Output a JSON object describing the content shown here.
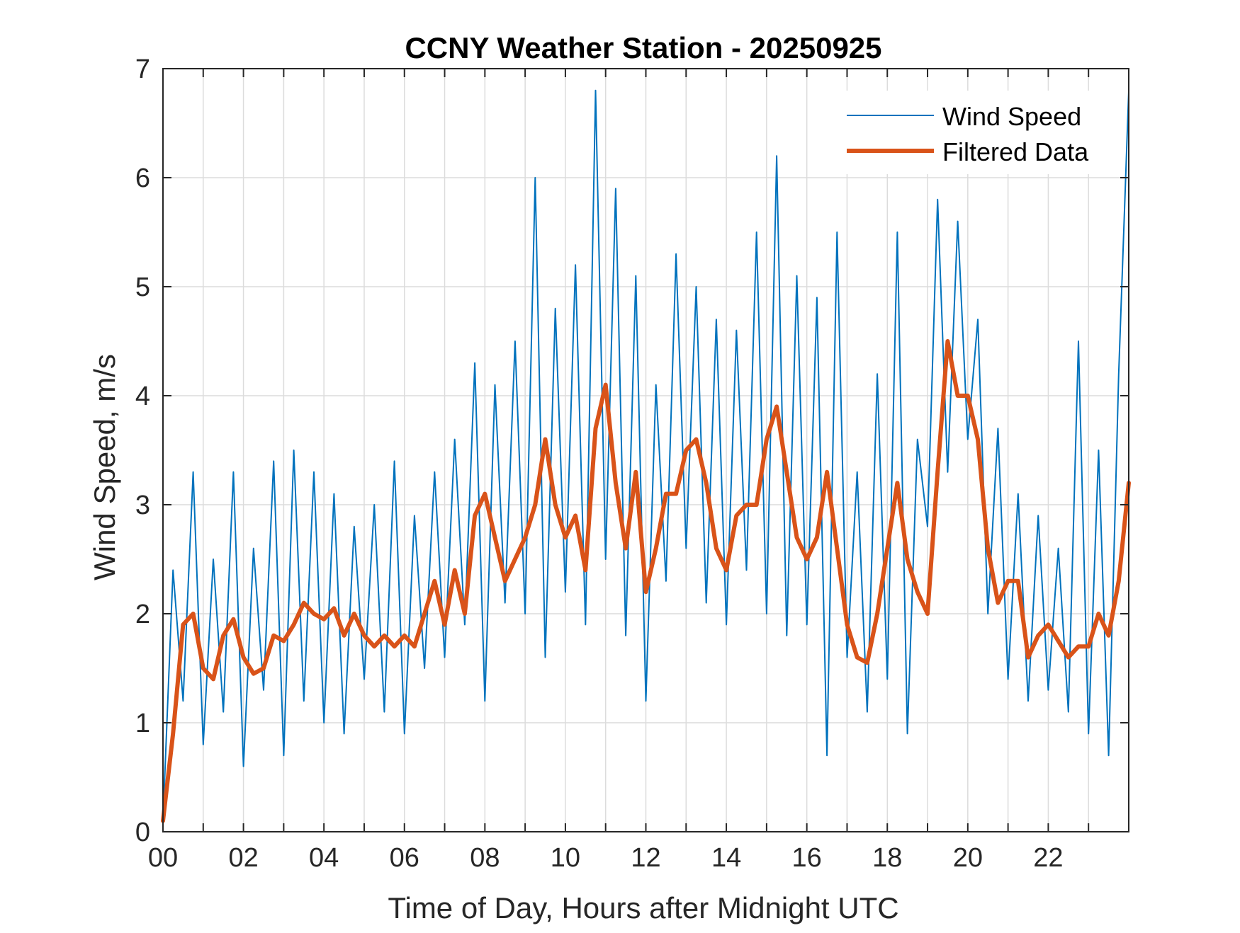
{
  "chart_data": {
    "type": "line",
    "title": "CCNY Weather Station - 20250925",
    "xlabel": "Time of Day, Hours after Midnight UTC",
    "ylabel": "Wind Speed, m/s",
    "xlim": [
      0,
      24
    ],
    "ylim": [
      0,
      7
    ],
    "x_ticks": [
      0,
      2,
      4,
      6,
      8,
      10,
      12,
      14,
      16,
      18,
      20,
      22
    ],
    "x_tick_labels": [
      "00",
      "02",
      "04",
      "06",
      "08",
      "10",
      "12",
      "14",
      "16",
      "18",
      "20",
      "22"
    ],
    "y_ticks": [
      0,
      1,
      2,
      3,
      4,
      5,
      6,
      7
    ],
    "y_tick_labels": [
      "0",
      "1",
      "2",
      "3",
      "4",
      "5",
      "6",
      "7"
    ],
    "grid": true,
    "legend": {
      "position": "top-right"
    },
    "series": [
      {
        "name": "Wind Speed",
        "color": "#0072BD",
        "style": "thin",
        "x": [
          0.0,
          0.25,
          0.5,
          0.75,
          1.0,
          1.25,
          1.5,
          1.75,
          2.0,
          2.25,
          2.5,
          2.75,
          3.0,
          3.25,
          3.5,
          3.75,
          4.0,
          4.25,
          4.5,
          4.75,
          5.0,
          5.25,
          5.5,
          5.75,
          6.0,
          6.25,
          6.5,
          6.75,
          7.0,
          7.25,
          7.5,
          7.75,
          8.0,
          8.25,
          8.5,
          8.75,
          9.0,
          9.25,
          9.5,
          9.75,
          10.0,
          10.25,
          10.5,
          10.75,
          11.0,
          11.25,
          11.5,
          11.75,
          12.0,
          12.25,
          12.5,
          12.75,
          13.0,
          13.25,
          13.5,
          13.75,
          14.0,
          14.25,
          14.5,
          14.75,
          15.0,
          15.25,
          15.5,
          15.75,
          16.0,
          16.25,
          16.5,
          16.75,
          17.0,
          17.25,
          17.5,
          17.75,
          18.0,
          18.25,
          18.5,
          18.75,
          19.0,
          19.25,
          19.5,
          19.75,
          20.0,
          20.25,
          20.5,
          20.75,
          21.0,
          21.25,
          21.5,
          21.75,
          22.0,
          22.25,
          22.5,
          22.75,
          23.0,
          23.25,
          23.5,
          23.75,
          24.0
        ],
        "values": [
          0.1,
          2.4,
          1.2,
          3.3,
          0.8,
          2.5,
          1.1,
          3.3,
          0.6,
          2.6,
          1.3,
          3.4,
          0.7,
          3.5,
          1.2,
          3.3,
          1.0,
          3.1,
          0.9,
          2.8,
          1.4,
          3.0,
          1.1,
          3.4,
          0.9,
          2.9,
          1.5,
          3.3,
          1.6,
          3.6,
          1.9,
          4.3,
          1.2,
          4.1,
          2.1,
          4.5,
          2.0,
          6.0,
          1.6,
          4.8,
          2.2,
          5.2,
          1.9,
          6.8,
          2.5,
          5.9,
          1.8,
          5.1,
          1.2,
          4.1,
          2.3,
          5.3,
          2.6,
          5.0,
          2.1,
          4.7,
          1.9,
          4.6,
          2.4,
          5.5,
          2.0,
          6.2,
          1.8,
          5.1,
          1.9,
          4.9,
          0.7,
          5.5,
          1.6,
          3.3,
          1.1,
          4.2,
          1.4,
          5.5,
          0.9,
          3.6,
          2.8,
          5.8,
          3.3,
          5.6,
          3.6,
          4.7,
          2.0,
          3.7,
          1.4,
          3.1,
          1.2,
          2.9,
          1.3,
          2.6,
          1.1,
          4.5,
          0.9,
          3.5,
          0.7,
          4.2,
          6.8
        ]
      },
      {
        "name": "Filtered Data",
        "color": "#D95319",
        "style": "thick",
        "x": [
          0.0,
          0.25,
          0.5,
          0.75,
          1.0,
          1.25,
          1.5,
          1.75,
          2.0,
          2.25,
          2.5,
          2.75,
          3.0,
          3.25,
          3.5,
          3.75,
          4.0,
          4.25,
          4.5,
          4.75,
          5.0,
          5.25,
          5.5,
          5.75,
          6.0,
          6.25,
          6.5,
          6.75,
          7.0,
          7.25,
          7.5,
          7.75,
          8.0,
          8.25,
          8.5,
          8.75,
          9.0,
          9.25,
          9.5,
          9.75,
          10.0,
          10.25,
          10.5,
          10.75,
          11.0,
          11.25,
          11.5,
          11.75,
          12.0,
          12.25,
          12.5,
          12.75,
          13.0,
          13.25,
          13.5,
          13.75,
          14.0,
          14.25,
          14.5,
          14.75,
          15.0,
          15.25,
          15.5,
          15.75,
          16.0,
          16.25,
          16.5,
          16.75,
          17.0,
          17.25,
          17.5,
          17.75,
          18.0,
          18.25,
          18.5,
          18.75,
          19.0,
          19.25,
          19.5,
          19.75,
          20.0,
          20.25,
          20.5,
          20.75,
          21.0,
          21.25,
          21.5,
          21.75,
          22.0,
          22.25,
          22.5,
          22.75,
          23.0,
          23.25,
          23.5,
          23.75,
          24.0
        ],
        "values": [
          0.1,
          0.9,
          1.9,
          2.0,
          1.5,
          1.4,
          1.8,
          1.95,
          1.6,
          1.45,
          1.5,
          1.8,
          1.75,
          1.9,
          2.1,
          2.0,
          1.95,
          2.05,
          1.8,
          2.0,
          1.8,
          1.7,
          1.8,
          1.7,
          1.8,
          1.7,
          2.0,
          2.3,
          1.9,
          2.4,
          2.0,
          2.9,
          3.1,
          2.7,
          2.3,
          2.5,
          2.7,
          3.0,
          3.6,
          3.0,
          2.7,
          2.9,
          2.4,
          3.7,
          4.1,
          3.2,
          2.6,
          3.3,
          2.2,
          2.6,
          3.1,
          3.1,
          3.5,
          3.6,
          3.2,
          2.6,
          2.4,
          2.9,
          3.0,
          3.0,
          3.6,
          3.9,
          3.3,
          2.7,
          2.5,
          2.7,
          3.3,
          2.6,
          1.9,
          1.6,
          1.55,
          2.0,
          2.6,
          3.2,
          2.5,
          2.2,
          2.0,
          3.3,
          4.5,
          4.0,
          4.0,
          3.6,
          2.6,
          2.1,
          2.3,
          2.3,
          1.6,
          1.8,
          1.9,
          1.75,
          1.6,
          1.7,
          1.7,
          2.0,
          1.8,
          2.3,
          3.2
        ]
      }
    ]
  }
}
